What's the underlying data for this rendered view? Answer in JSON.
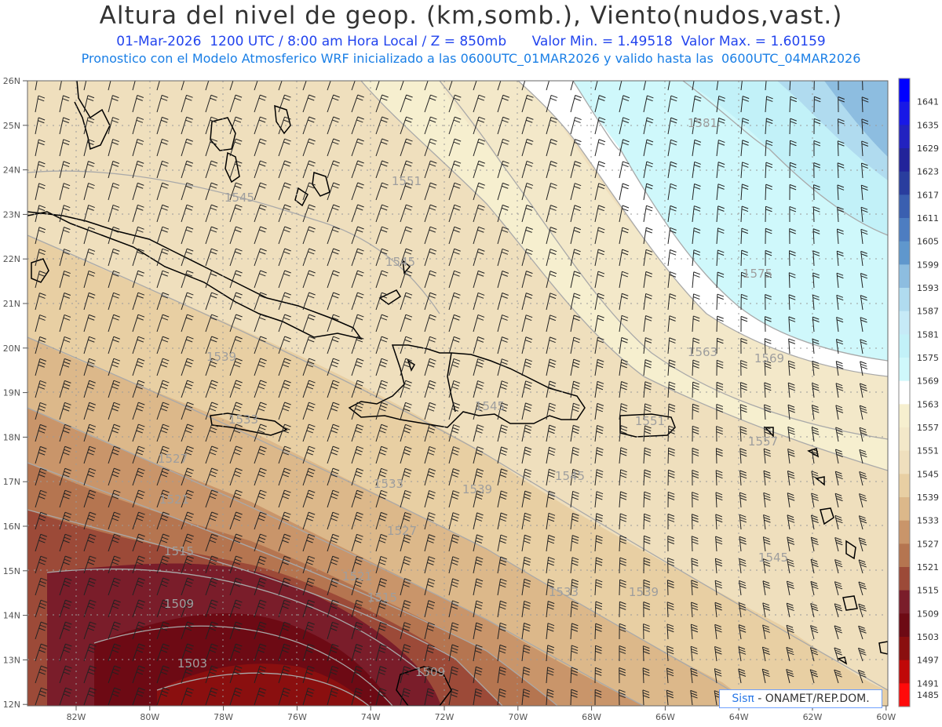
{
  "header": {
    "title": "Altura del nivel de geop. (km,somb.), Viento(nudos,vast.)",
    "subtitle_date": "01-Mar-2026  1200 UTC / 8:00 am Hora Local / Z = 850mb",
    "subtitle_min": "Valor Min. = 1.49518",
    "subtitle_max": "Valor Max. = 1.60159",
    "forecast_line": "Pronostico con el Modelo Atmosferico WRF inicializado a las 0600UTC_01MAR2026 y valido hasta las  0600UTC_04MAR2026"
  },
  "axes": {
    "lat_labels": [
      "26N",
      "25N",
      "24N",
      "23N",
      "22N",
      "21N",
      "20N",
      "19N",
      "18N",
      "17N",
      "16N",
      "15N",
      "14N",
      "13N",
      "12N"
    ],
    "lon_labels": [
      "82W",
      "80W",
      "78W",
      "76W",
      "74W",
      "72W",
      "70W",
      "68W",
      "66W",
      "64W",
      "62W",
      "60W"
    ]
  },
  "colorbar": {
    "levels": [
      1641,
      1635,
      1629,
      1623,
      1617,
      1611,
      1605,
      1599,
      1593,
      1587,
      1581,
      1575,
      1569,
      1563,
      1557,
      1551,
      1545,
      1539,
      1533,
      1527,
      1521,
      1515,
      1509,
      1503,
      1497,
      1491,
      1485
    ],
    "colors": [
      "#0000ff",
      "#1818e6",
      "#2222c0",
      "#22239a",
      "#293d9e",
      "#3a5fb0",
      "#4d7dc1",
      "#5f97cd",
      "#8dbde0",
      "#b0dbef",
      "#c6eaf7",
      "#c2f1f8",
      "#cff8fb",
      "#ffffff",
      "#f6efcf",
      "#f3e8c9",
      "#efdfbd",
      "#e8cfa3",
      "#dcb88a",
      "#c9956a",
      "#b57550",
      "#9c4a38",
      "#7a1d2a",
      "#6d0a14",
      "#8a0f0f",
      "#c00808",
      "#ff0a0a"
    ]
  },
  "contour_labels": [
    {
      "text": "1545"
    },
    {
      "text": "1551"
    },
    {
      "text": "1581"
    },
    {
      "text": "1545"
    },
    {
      "text": "1575"
    },
    {
      "text": "1563"
    },
    {
      "text": "1569"
    },
    {
      "text": "1539"
    },
    {
      "text": "1545"
    },
    {
      "text": "1533"
    },
    {
      "text": "1551"
    },
    {
      "text": "1557"
    },
    {
      "text": "1527"
    },
    {
      "text": "1533"
    },
    {
      "text": "1539"
    },
    {
      "text": "1545"
    },
    {
      "text": "1521"
    },
    {
      "text": "1527"
    },
    {
      "text": "1515"
    },
    {
      "text": "1521"
    },
    {
      "text": "1545"
    },
    {
      "text": "1509"
    },
    {
      "text": "1515"
    },
    {
      "text": "1533"
    },
    {
      "text": "1539"
    },
    {
      "text": "1503"
    },
    {
      "text": "1509"
    }
  ],
  "credit": {
    "brand": "Sisπ",
    "text": " - ONAMET/REP.DOM."
  }
}
